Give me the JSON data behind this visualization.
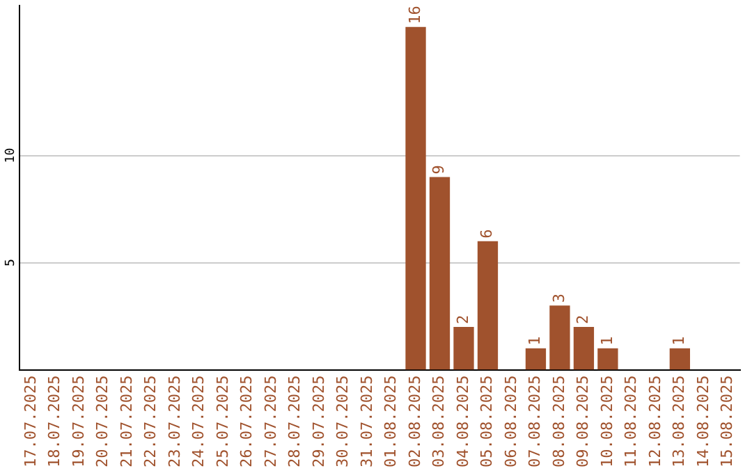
{
  "chart_data": {
    "type": "bar",
    "categories": [
      "17.07.2025",
      "18.07.2025",
      "19.07.2025",
      "20.07.2025",
      "21.07.2025",
      "22.07.2025",
      "23.07.2025",
      "24.07.2025",
      "25.07.2025",
      "26.07.2025",
      "27.07.2025",
      "28.07.2025",
      "29.07.2025",
      "30.07.2025",
      "31.07.2025",
      "01.08.2025",
      "02.08.2025",
      "03.08.2025",
      "04.08.2025",
      "05.08.2025",
      "06.08.2025",
      "07.08.2025",
      "08.08.2025",
      "09.08.2025",
      "10.08.2025",
      "11.08.2025",
      "12.08.2025",
      "13.08.2025",
      "14.08.2025",
      "15.08.2025"
    ],
    "values": [
      0,
      0,
      0,
      0,
      0,
      0,
      0,
      0,
      0,
      0,
      0,
      0,
      0,
      0,
      0,
      0,
      16,
      9,
      2,
      6,
      0,
      1,
      3,
      2,
      1,
      0,
      0,
      1,
      0,
      0
    ],
    "value_labels": [
      null,
      null,
      null,
      null,
      null,
      null,
      null,
      null,
      null,
      null,
      null,
      null,
      null,
      null,
      null,
      null,
      "16",
      "9",
      "2",
      "6",
      null,
      "1",
      "3",
      "2",
      "1",
      null,
      null,
      "1",
      null,
      null
    ],
    "color": "#a0522d",
    "ylim": [
      0,
      17
    ],
    "yticks": [
      5,
      10
    ],
    "grid": "y",
    "legend": false
  }
}
